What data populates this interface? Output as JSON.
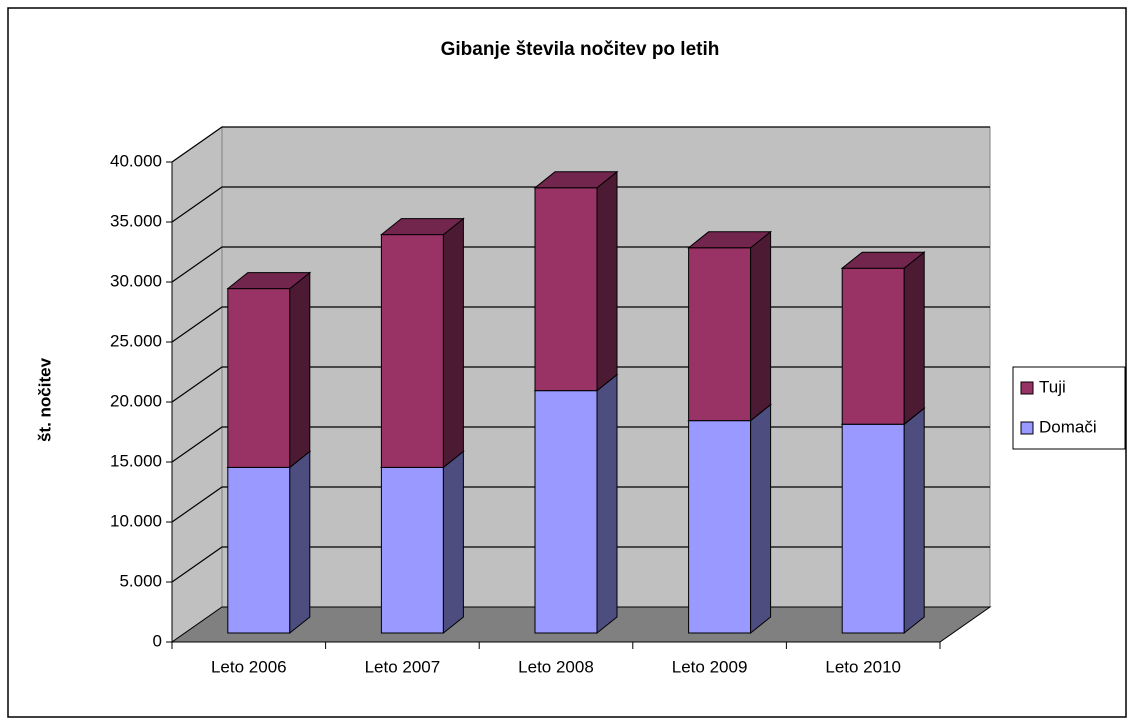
{
  "chart_data": {
    "type": "bar3d_stacked",
    "title": "Gibanje števila nočitev po letih",
    "y_label": "št. nočitev",
    "categories": [
      "Leto 2006",
      "Leto 2007",
      "Leto 2008",
      "Leto 2009",
      "Leto 2010"
    ],
    "series": [
      {
        "name": "Domači",
        "color": "#9999ff",
        "values": [
          13800,
          13800,
          20200,
          17700,
          17400
        ]
      },
      {
        "name": "Tuji",
        "color": "#993366",
        "values": [
          14900,
          19400,
          16900,
          14400,
          13000
        ]
      }
    ],
    "ylim": [
      0,
      40000
    ],
    "yticks": [
      0,
      {
        "value": 5000,
        "label": "5.000"
      },
      {
        "value": 10000,
        "label": "10.000"
      },
      {
        "value": 15000,
        "label": "15.000"
      },
      {
        "value": 20000,
        "label": "20.000"
      },
      {
        "value": 25000,
        "label": "25.000"
      },
      {
        "value": 30000,
        "label": "30.000"
      },
      {
        "value": 35000,
        "label": "35.000"
      },
      {
        "value": 40000,
        "label": "40.000"
      }
    ],
    "grid": true,
    "legend": "right"
  }
}
